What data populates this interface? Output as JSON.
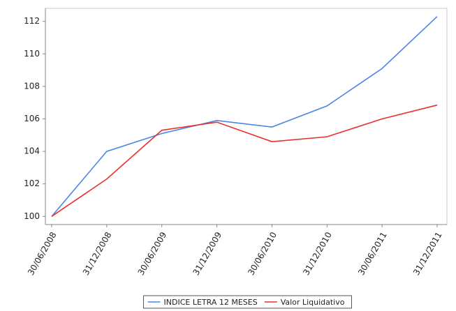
{
  "chart_data": {
    "type": "line",
    "categories": [
      "30/06/2008",
      "31/12/2008",
      "30/06/2009",
      "31/12/2009",
      "30/06/2010",
      "31/12/2010",
      "30/06/2011",
      "31/12/2011"
    ],
    "series": [
      {
        "name": "INDICE LETRA 12 MESES",
        "color": "#4a86e8",
        "values": [
          100,
          104.0,
          105.1,
          105.9,
          105.5,
          106.8,
          109.1,
          112.3
        ]
      },
      {
        "name": "Valor Liquidativo",
        "color": "#e8302f",
        "values": [
          100,
          102.3,
          105.3,
          105.8,
          104.6,
          104.9,
          106.0,
          106.85
        ]
      }
    ],
    "ylim": [
      99.5,
      112.8
    ],
    "yticks": [
      100,
      102,
      104,
      106,
      108,
      110,
      112
    ],
    "grid": false
  }
}
